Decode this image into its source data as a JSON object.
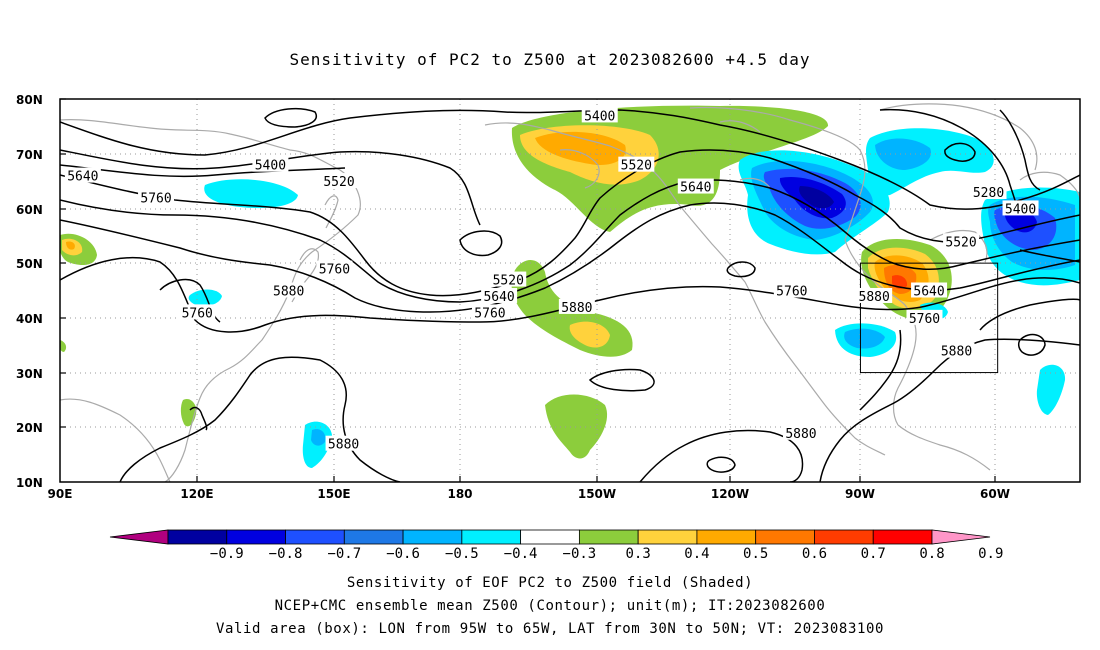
{
  "title": "Sensitivity of PC2 to Z500 at 2023082600 +4.5 day",
  "axes": {
    "lat_ticks": [
      "80N",
      "70N",
      "60N",
      "50N",
      "40N",
      "30N",
      "20N",
      "10N"
    ],
    "lon_ticks": [
      "90E",
      "120E",
      "150E",
      "180",
      "150W",
      "120W",
      "90W",
      "60W"
    ],
    "lon_range": [
      90,
      313
    ],
    "lat_range": [
      10,
      80
    ],
    "grid": true
  },
  "contour_labels": [
    {
      "text": "5400",
      "lon": 208,
      "lat": 77
    },
    {
      "text": "5400",
      "lon": 136,
      "lat": 68
    },
    {
      "text": "5520",
      "lon": 151,
      "lat": 65
    },
    {
      "text": "5640",
      "lon": 95,
      "lat": 66
    },
    {
      "text": "5760",
      "lon": 111,
      "lat": 62
    },
    {
      "text": "5520",
      "lon": 216,
      "lat": 68
    },
    {
      "text": "5640",
      "lon": 229,
      "lat": 64
    },
    {
      "text": "5280",
      "lon": 293,
      "lat": 63
    },
    {
      "text": "5400",
      "lon": 300,
      "lat": 60
    },
    {
      "text": "5520",
      "lon": 287,
      "lat": 54
    },
    {
      "text": "5640",
      "lon": 280,
      "lat": 45
    },
    {
      "text": "5520",
      "lon": 188,
      "lat": 47
    },
    {
      "text": "5640",
      "lon": 186,
      "lat": 44
    },
    {
      "text": "5760",
      "lon": 184,
      "lat": 41
    },
    {
      "text": "5760",
      "lon": 150,
      "lat": 49
    },
    {
      "text": "5760",
      "lon": 120,
      "lat": 41
    },
    {
      "text": "5880",
      "lon": 140,
      "lat": 45
    },
    {
      "text": "5880",
      "lon": 203,
      "lat": 42
    },
    {
      "text": "5760",
      "lon": 250,
      "lat": 45
    },
    {
      "text": "5880",
      "lon": 268,
      "lat": 44
    },
    {
      "text": "5760",
      "lon": 279,
      "lat": 40
    },
    {
      "text": "5880",
      "lon": 286,
      "lat": 34
    },
    {
      "text": "5880",
      "lon": 252,
      "lat": 19
    },
    {
      "text": "5880",
      "lon": 152,
      "lat": 17
    }
  ],
  "box": {
    "lon": [
      265,
      295
    ],
    "lat": [
      30,
      50
    ]
  },
  "colorbar": {
    "colors": [
      "#b0007f",
      "#0000a0",
      "#0000e0",
      "#1e50ff",
      "#1e78e6",
      "#00b4ff",
      "#00f0ff",
      "#ffffff",
      "#8ccd3c",
      "#ffd23c",
      "#ffaa00",
      "#ff7800",
      "#ff3c00",
      "#ff0000",
      "#ff96c8"
    ],
    "ticks": [
      "−0.9",
      "−0.8",
      "−0.7",
      "−0.6",
      "−0.5",
      "−0.4",
      "−0.3",
      "0.3",
      "0.4",
      "0.5",
      "0.6",
      "0.7",
      "0.8",
      "0.9"
    ]
  },
  "captions": {
    "line1": "Sensitivity of EOF PC2 to Z500 field (Shaded)",
    "line2": "NCEP+CMC ensemble mean Z500 (Contour); unit(m); IT:2023082600",
    "line3": "Valid area (box): LON from 95W to 65W, LAT from 30N to 50N; VT: 2023083100"
  }
}
